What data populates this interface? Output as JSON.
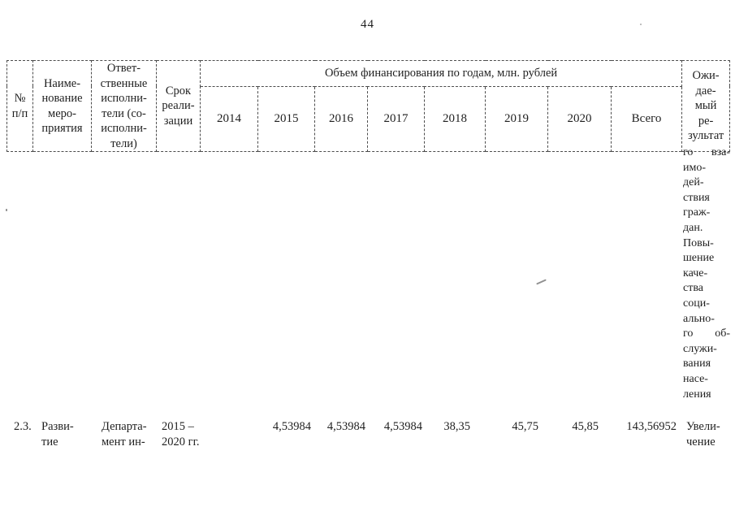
{
  "page": {
    "number": "44"
  },
  "table": {
    "header": {
      "col_num": "№\nп/п",
      "col_name": "Наиме-\nнование\nмеро-\nприятия",
      "col_executors": "Ответ-\nственные\nисполни-\nтели (со-\nисполни-\nтели)",
      "col_term": "Срок\nреали-\nзации",
      "finance_group": "Объем финансирования по годам, млн. рублей",
      "years": [
        "2014",
        "2015",
        "2016",
        "2017",
        "2018",
        "2019",
        "2020",
        "Всего"
      ],
      "col_result": "Ожи-\nдае-\nмый\nре-\nзультат"
    },
    "carryover_result_lines": [
      "го вза-",
      "имо-",
      "дей-",
      "ствия",
      "граж-",
      "дан.",
      "Повы-",
      "шение",
      "каче-",
      "ства",
      "соци-",
      "ально-",
      "го об-",
      "служи-",
      "вания",
      "насе-",
      "ления"
    ],
    "row": {
      "num": "2.3.",
      "name": "Разви-\nтие",
      "executors": "Департа-\nмент ин-",
      "term": "2015 –\n2020 гг.",
      "values": [
        "",
        "4,53984",
        "4,53984",
        "4,53984",
        "38,35",
        "45,75",
        "45,85",
        "143,56952"
      ],
      "result": "Увели-\nчение"
    }
  }
}
